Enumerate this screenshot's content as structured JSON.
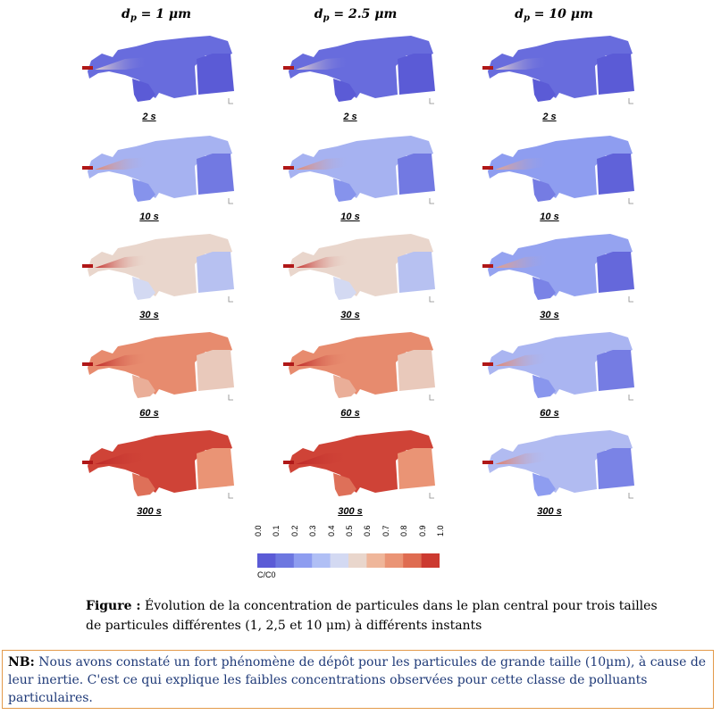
{
  "columns": [
    {
      "label": "d",
      "sub": "p",
      "value": " = 1 μm"
    },
    {
      "label": "d",
      "sub": "p",
      "value": " = 2.5 μm"
    },
    {
      "label": "d",
      "sub": "p",
      "value": " = 10 μm"
    }
  ],
  "time_labels": [
    "2 s",
    "10 s",
    "30 s",
    "60 s",
    "300 s"
  ],
  "panels": [
    {
      "time": "2 s",
      "levels": [
        0.05,
        0.05,
        0.05
      ]
    },
    {
      "time": "10 s",
      "levels": [
        0.27,
        0.27,
        0.2
      ]
    },
    {
      "time": "30 s",
      "levels": [
        0.5,
        0.5,
        0.22
      ]
    },
    {
      "time": "60 s",
      "levels": [
        0.72,
        0.72,
        0.28
      ]
    },
    {
      "time": "300 s",
      "levels": [
        0.88,
        0.88,
        0.3
      ]
    }
  ],
  "colorbar": {
    "ticks": [
      "0.0",
      "0.1",
      "0.2",
      "0.3",
      "0.4",
      "0.5",
      "0.6",
      "0.7",
      "0.8",
      "0.9",
      "1.0"
    ],
    "label": "C/C0",
    "colors": [
      "#5b5bd6",
      "#6d77e0",
      "#8e9df0",
      "#b0bff5",
      "#d3d9f2",
      "#e9d6cc",
      "#efb69a",
      "#ea9475",
      "#df6c51",
      "#cc3a30"
    ]
  },
  "caption": {
    "lead": "Figure :",
    "text": " Évolution de la concentration de particules dans le plan central pour trois tailles de particules différentes (1, 2,5 et 10 μm) à différents instants"
  },
  "note": {
    "lead": "NB:",
    "text": " Nous avons constaté un fort phénomène de dépôt pour les particules de grande taille (10µm), à cause de leur inertie. C'est ce qui explique les faibles concentrations observées pour cette classe de polluants particulaires."
  }
}
